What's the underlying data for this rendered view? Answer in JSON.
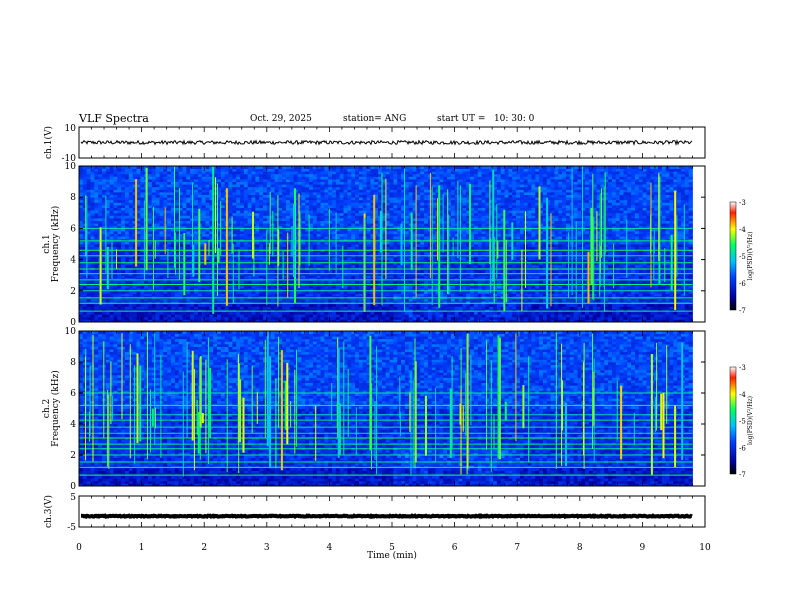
{
  "header": {
    "title": "VLF Spectra",
    "date": "Oct. 29, 2025",
    "station": "station= ANG",
    "start": "start UT =   10: 30: 0"
  },
  "chart_data": [
    {
      "type": "line",
      "name": "ch1-waveform",
      "ylabel": "ch.1(V)",
      "ylim": [
        -10,
        10
      ],
      "y_ticks": [
        "10",
        "-10"
      ],
      "xlim": [
        0,
        10
      ],
      "y_level": 0,
      "noise_amplitude": 1.2
    },
    {
      "type": "heatmap",
      "name": "ch1-spectrogram",
      "ylabel": "ch.1\nFrequency (kHz)",
      "ylim": [
        0,
        10
      ],
      "y_ticks": [
        "0",
        "2",
        "4",
        "6",
        "8",
        "10"
      ],
      "xlim": [
        0,
        9.8
      ],
      "colorbar": {
        "label": "log(PSD)(V²/Hz)",
        "range": [
          -7,
          -3
        ],
        "ticks": [
          "-3",
          "-4",
          "-5",
          "-6",
          "-7"
        ]
      }
    },
    {
      "type": "heatmap",
      "name": "ch2-spectrogram",
      "ylabel": "ch.2\nFrequency (kHz)",
      "ylim": [
        0,
        10
      ],
      "y_ticks": [
        "0",
        "2",
        "4",
        "6",
        "8",
        "10"
      ],
      "xlim": [
        0,
        9.8
      ],
      "colorbar": {
        "label": "log(PSD)(V²/Hz)",
        "range": [
          -7,
          -3
        ],
        "ticks": [
          "-3",
          "-4",
          "-5",
          "-6",
          "-7"
        ]
      }
    },
    {
      "type": "line",
      "name": "ch3-waveform",
      "ylabel": "ch.3(V)",
      "ylim": [
        -5,
        5
      ],
      "y_ticks": [
        "5",
        "-5"
      ],
      "xlim": [
        0,
        10
      ],
      "y_level": -1.5,
      "noise_amplitude": 0.15
    }
  ],
  "x_axis": {
    "label": "Time (min)",
    "range": [
      0,
      10
    ],
    "ticks": [
      "0",
      "1",
      "2",
      "3",
      "4",
      "5",
      "6",
      "7",
      "8",
      "9",
      "10"
    ]
  }
}
